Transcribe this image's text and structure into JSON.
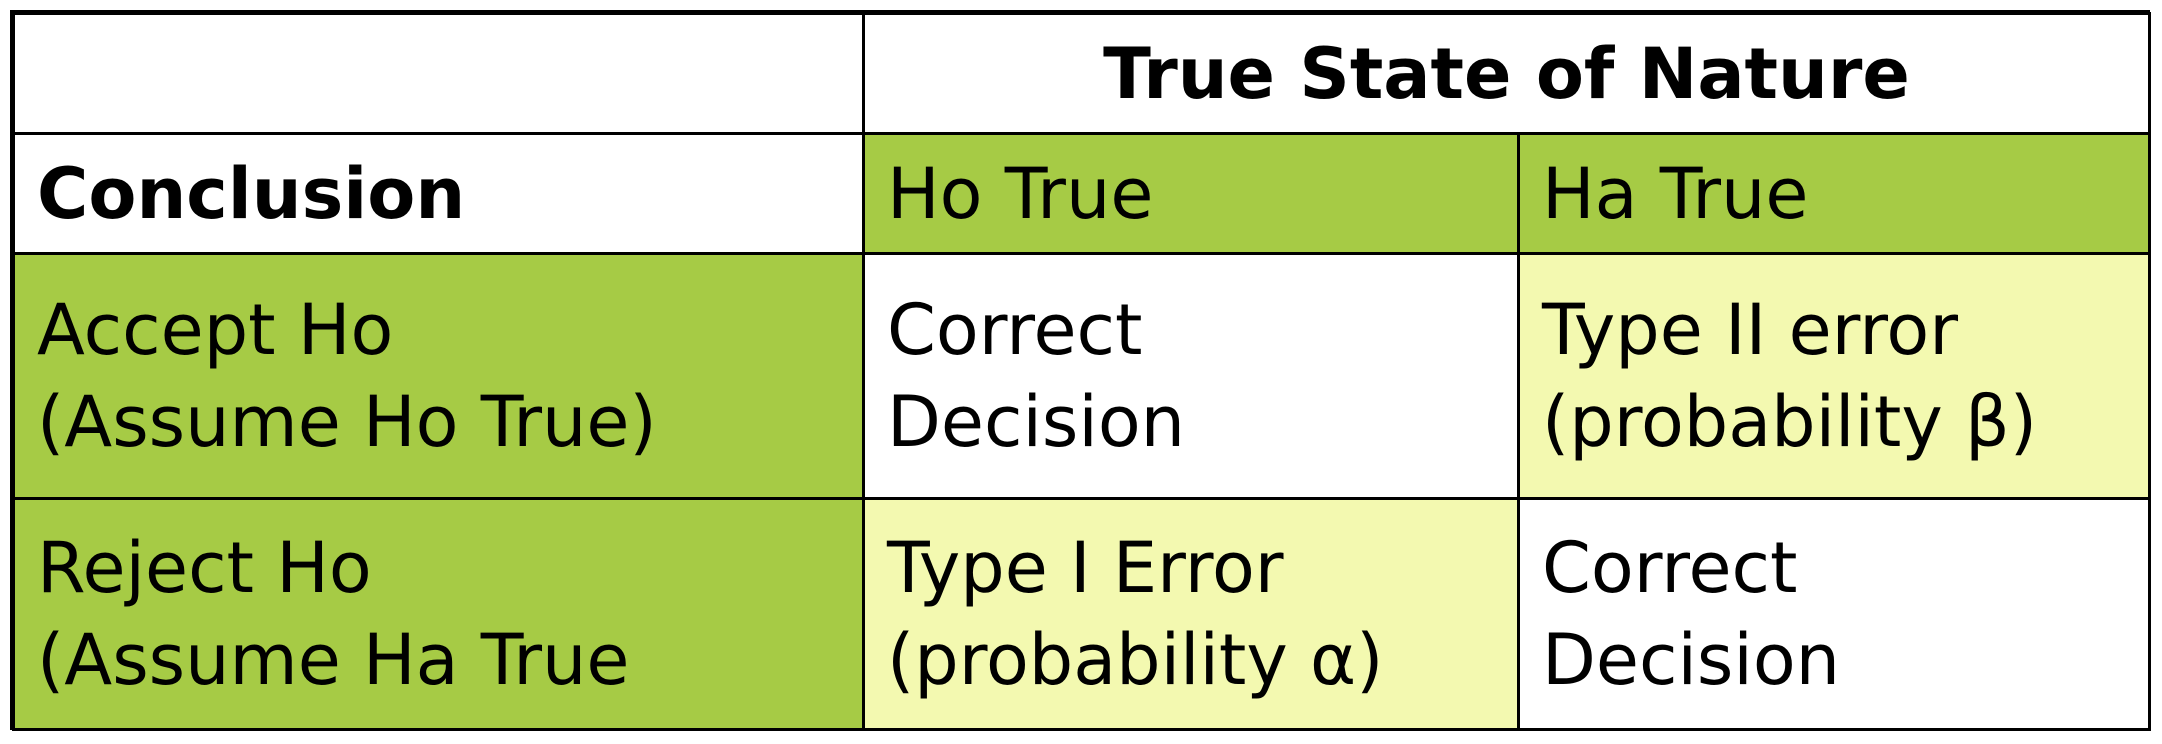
{
  "table": {
    "header_span": "True State of Nature",
    "row_header_title": "Conclusion",
    "col_headers": [
      "Ho True",
      "Ha True"
    ],
    "rows": [
      {
        "label_line1": "Accept Ho",
        "label_line2": "(Assume Ho True)",
        "ho_true": {
          "line1": "Correct",
          "line2": "Decision"
        },
        "ha_true": {
          "line1": "Type II error",
          "line2": "(probability β)"
        }
      },
      {
        "label_line1": "Reject Ho",
        "label_line2": "(Assume Ha True",
        "ho_true": {
          "line1": "Type I Error",
          "line2": "(probability α)"
        },
        "ha_true": {
          "line1": "Correct",
          "line2": "Decision"
        }
      }
    ]
  },
  "colors": {
    "header_green": "#a6cb45",
    "error_pale_yellow": "#f3f9b0",
    "correct_white": "#ffffff",
    "border": "#000000"
  }
}
